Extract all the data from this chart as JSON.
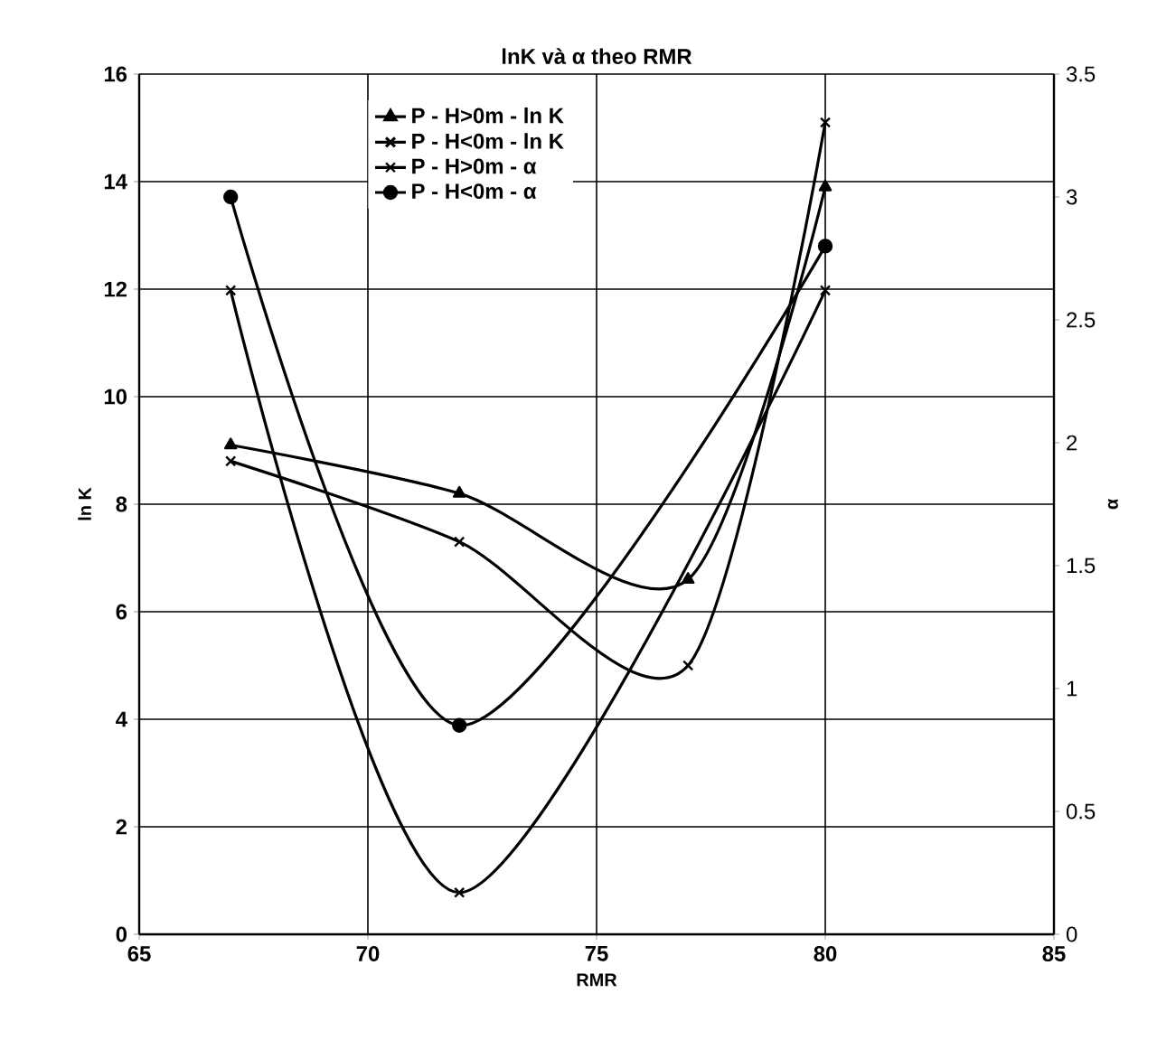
{
  "chart_data": {
    "type": "line",
    "title": "lnK và α theo RMR",
    "xlabel": "RMR",
    "ylabel": "ln K",
    "y2label": "α",
    "x": [
      67,
      72,
      77,
      80
    ],
    "series": [
      {
        "name": "P - H>0m - ln K",
        "color": "#000000",
        "marker": "triangle",
        "values": [
          9.1,
          8.2,
          6.6,
          13.9
        ]
      },
      {
        "name": "P - H<0m - ln K",
        "color": "#000000",
        "marker": "cross",
        "values": [
          8.8,
          7.3,
          5.0,
          15.1
        ]
      },
      {
        "name": "P - H>0m - α",
        "color": "#000000",
        "marker": "cross",
        "axis": "y2",
        "x": [
          67,
          72,
          80
        ],
        "values": [
          2.62,
          0.17,
          2.62
        ]
      },
      {
        "name": "P - H<0m - α",
        "color": "#000000",
        "marker": "circle",
        "axis": "y2",
        "x": [
          67,
          72,
          80
        ],
        "values": [
          3.0,
          0.85,
          2.8
        ]
      }
    ],
    "xlim": [
      65,
      85
    ],
    "xticks": [
      65,
      70,
      75,
      80,
      85
    ],
    "ylim": [
      0,
      16
    ],
    "yticks": [
      0,
      2,
      4,
      6,
      8,
      10,
      12,
      14,
      16
    ],
    "y2lim": [
      0,
      3.5
    ],
    "y2ticks": [
      0,
      0.5,
      1,
      1.5,
      2,
      2.5,
      3,
      3.5
    ],
    "grid": true,
    "legend": "top",
    "line_style": "solid"
  }
}
